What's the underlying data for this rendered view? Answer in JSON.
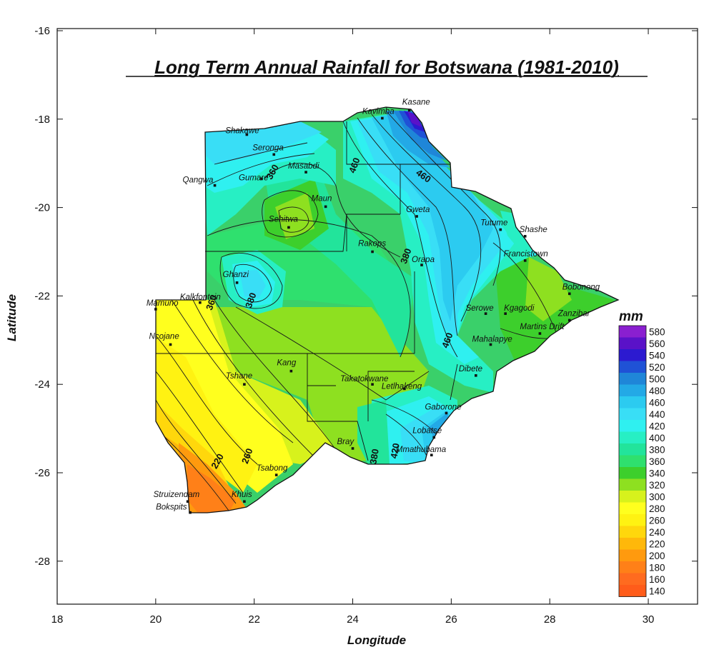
{
  "title": "Long Term Annual Rainfall for Botswana (1981-2010)",
  "axes": {
    "xlabel": "Longitude",
    "ylabel": "Latitude",
    "x_ticks": [
      "18",
      "20",
      "22",
      "24",
      "26",
      "28",
      "30"
    ],
    "y_ticks": [
      "-16",
      "-18",
      "-20",
      "-22",
      "-24",
      "-26",
      "-28"
    ],
    "xlim": [
      18,
      31
    ],
    "ylim": [
      -29,
      -16
    ]
  },
  "legend": {
    "title": "mm",
    "placement": "right",
    "levels": [
      "580",
      "560",
      "540",
      "520",
      "500",
      "480",
      "460",
      "440",
      "420",
      "400",
      "380",
      "360",
      "340",
      "320",
      "300",
      "280",
      "260",
      "240",
      "220",
      "200",
      "180",
      "160",
      "140"
    ],
    "colors": [
      "#8a1fd0",
      "#5a12c8",
      "#2c1ad0",
      "#1f52d6",
      "#1f86d8",
      "#23a9e6",
      "#2ccbf0",
      "#39def6",
      "#2ff0f0",
      "#27efc4",
      "#22e49b",
      "#2fe06e",
      "#3dcf2c",
      "#8ee020",
      "#d7f21c",
      "#ffff1e",
      "#fff212",
      "#ffd70c",
      "#ffb80a",
      "#ff9a0e",
      "#ff8018",
      "#ff6b1f",
      "#ff5c1a"
    ]
  },
  "stations": [
    {
      "name": "Kasane",
      "lon": 25.15,
      "lat": -17.8
    },
    {
      "name": "Kavimba",
      "lon": 24.6,
      "lat": -17.98
    },
    {
      "name": "Shakawe",
      "lon": 21.85,
      "lat": -18.35
    },
    {
      "name": "Seronga",
      "lon": 22.4,
      "lat": -18.8
    },
    {
      "name": "Masabdi",
      "lon": 23.05,
      "lat": -19.2
    },
    {
      "name": "Gumare",
      "lon": 22.15,
      "lat": -19.35
    },
    {
      "name": "Qangwa",
      "lon": 21.2,
      "lat": -19.5
    },
    {
      "name": "Maun",
      "lon": 23.45,
      "lat": -19.98
    },
    {
      "name": "Seronga",
      "lon": 22.4,
      "lat": -18.8
    },
    {
      "name": "Sehitwa",
      "lon": 22.7,
      "lat": -20.45
    },
    {
      "name": "Rakops",
      "lon": 24.4,
      "lat": -21.0
    },
    {
      "name": "Gweta",
      "lon": 25.3,
      "lat": -20.2
    },
    {
      "name": "Orapa",
      "lon": 25.4,
      "lat": -21.3
    },
    {
      "name": "Tutume",
      "lon": 27.0,
      "lat": -20.5
    },
    {
      "name": "Shashe",
      "lon": 27.5,
      "lat": -20.65
    },
    {
      "name": "Francistown",
      "lon": 27.5,
      "lat": -21.2
    },
    {
      "name": "Ghanzi",
      "lon": 21.65,
      "lat": -21.7
    },
    {
      "name": "Bobonong",
      "lon": 28.4,
      "lat": -21.95
    },
    {
      "name": "Kalkfontein",
      "lon": 20.9,
      "lat": -22.15
    },
    {
      "name": "Mamuno",
      "lon": 20.0,
      "lat": -22.3
    },
    {
      "name": "Serowe",
      "lon": 26.7,
      "lat": -22.4
    },
    {
      "name": "Kgagodi",
      "lon": 27.1,
      "lat": -22.4
    },
    {
      "name": "Zanzibar",
      "lon": 28.4,
      "lat": -22.55
    },
    {
      "name": "Martins Drift",
      "lon": 27.8,
      "lat": -22.85
    },
    {
      "name": "Mahalapye",
      "lon": 26.8,
      "lat": -23.1
    },
    {
      "name": "Ncojane",
      "lon": 20.3,
      "lat": -23.1
    },
    {
      "name": "Kang",
      "lon": 22.75,
      "lat": -23.7
    },
    {
      "name": "Tshane",
      "lon": 21.8,
      "lat": -24.0
    },
    {
      "name": "Takatokwane",
      "lon": 24.4,
      "lat": -24.0
    },
    {
      "name": "Letlhakeng",
      "lon": 25.05,
      "lat": -24.1
    },
    {
      "name": "Dibete",
      "lon": 26.5,
      "lat": -23.8
    },
    {
      "name": "Gaborone",
      "lon": 25.9,
      "lat": -24.65
    },
    {
      "name": "Lobatse",
      "lon": 25.65,
      "lat": -25.2
    },
    {
      "name": "Bray",
      "lon": 24.0,
      "lat": -25.45
    },
    {
      "name": "Mmathubama",
      "lon": 25.6,
      "lat": -25.6
    },
    {
      "name": "Tsabong",
      "lon": 22.45,
      "lat": -26.05
    },
    {
      "name": "Struizendam",
      "lon": 20.65,
      "lat": -26.65
    },
    {
      "name": "Khuis",
      "lon": 21.8,
      "lat": -26.65
    },
    {
      "name": "Bokspits",
      "lon": 20.7,
      "lat": -26.9
    }
  ],
  "contour_labels": [
    "460",
    "460",
    "360",
    "380",
    "380",
    "220",
    "260",
    "360",
    "380",
    "420",
    "460"
  ]
}
